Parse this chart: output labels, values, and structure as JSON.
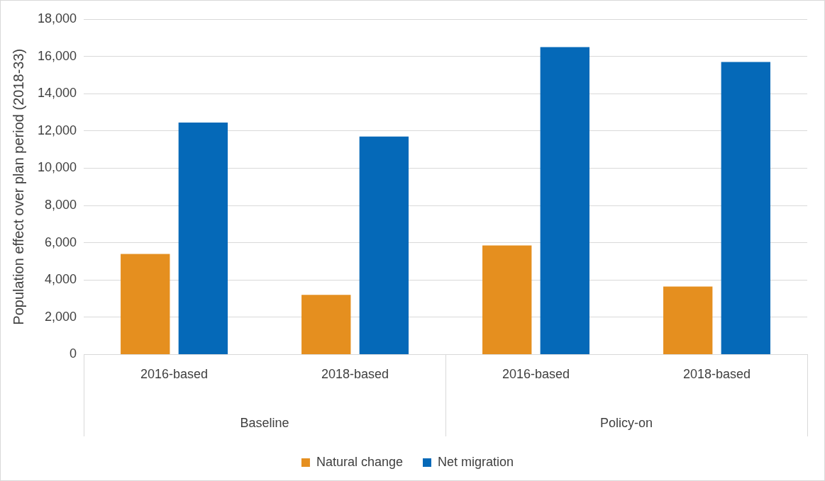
{
  "chart_data": {
    "type": "bar",
    "ylabel": "Population effect over plan period (2018-33)",
    "categories": [
      "2016-based",
      "2018-based",
      "2016-based",
      "2018-based"
    ],
    "annotations": [
      "Baseline",
      "Policy-on"
    ],
    "series": [
      {
        "name": "Natural change",
        "color": "#e58f1f",
        "values": [
          5400,
          3200,
          5850,
          3650
        ]
      },
      {
        "name": "Net migration",
        "color": "#0569b8",
        "values": [
          12450,
          11700,
          16500,
          15700
        ]
      }
    ],
    "ylim": [
      0,
      18000
    ],
    "yticks": [
      0,
      {
        "value": 2000,
        "label": "2,000"
      },
      {
        "value": 4000,
        "label": "4,000"
      },
      {
        "value": 6000,
        "label": "6,000"
      },
      {
        "value": 8000,
        "label": "8,000"
      },
      {
        "value": 10000,
        "label": "10,000"
      },
      {
        "value": 12000,
        "label": "12,000"
      },
      {
        "value": 14000,
        "label": "14,000"
      },
      {
        "value": 16000,
        "label": "16,000"
      },
      {
        "value": 18000,
        "label": "18,000"
      }
    ],
    "grid": "y",
    "legend": "bottom"
  }
}
